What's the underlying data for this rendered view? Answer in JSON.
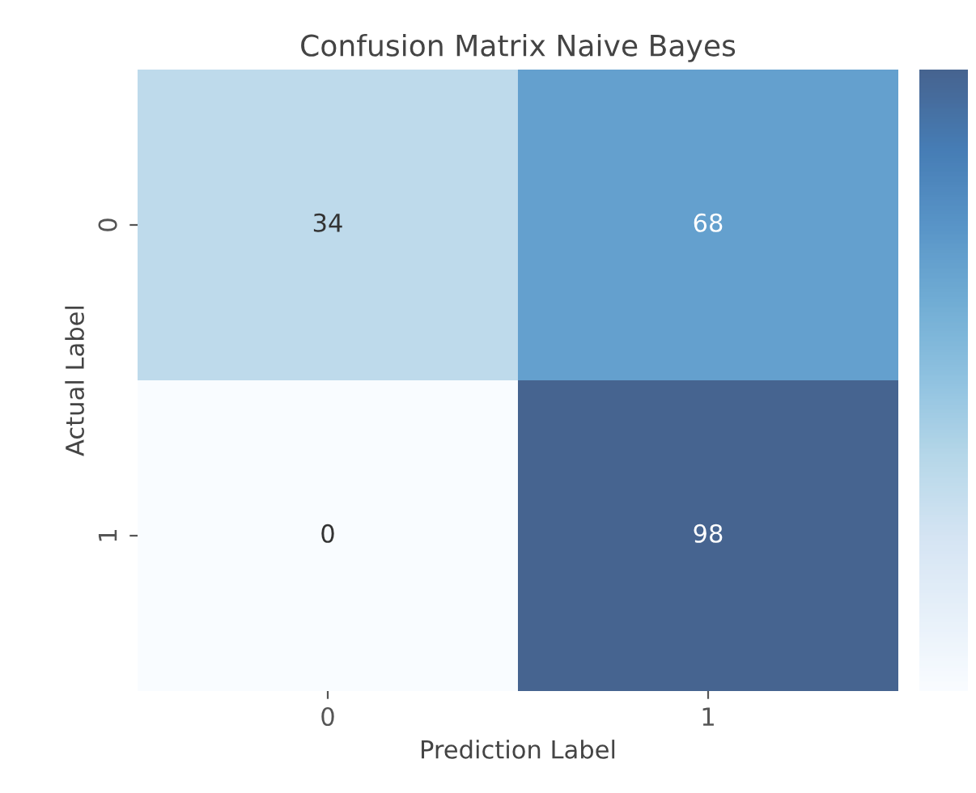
{
  "chart_data": {
    "type": "heatmap",
    "title": "Confusion Matrix Naive Bayes",
    "xlabel": "Prediction Label",
    "ylabel": "Actual Label",
    "categories": [
      "0",
      "1"
    ],
    "y_categories": [
      "0",
      "1"
    ],
    "cells": [
      [
        34,
        68
      ],
      [
        0,
        98
      ]
    ],
    "data_labels": true
  }
}
